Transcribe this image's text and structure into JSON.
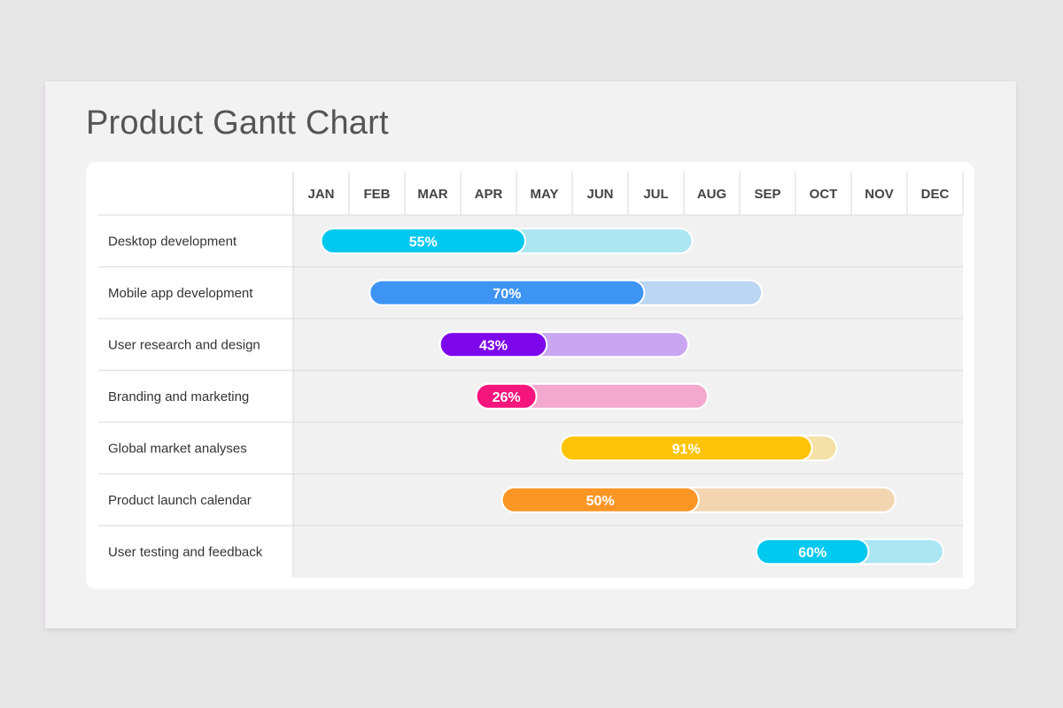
{
  "title": "Product Gantt Chart",
  "chart_data": {
    "type": "gantt",
    "months": [
      "JAN",
      "FEB",
      "MAR",
      "APR",
      "MAY",
      "JUN",
      "JUL",
      "AUG",
      "SEP",
      "OCT",
      "NOV",
      "DEC"
    ],
    "tasks": [
      {
        "name": "Desktop development",
        "start": 0.5,
        "end": 7.15,
        "progress": 55,
        "label": "55%",
        "color": "#00c8ef",
        "light": "#abe6f2"
      },
      {
        "name": "Mobile app development",
        "start": 1.37,
        "end": 8.4,
        "progress": 70,
        "label": "70%",
        "color": "#3e94f3",
        "light": "#bad6f3"
      },
      {
        "name": "User research and design",
        "start": 2.63,
        "end": 7.08,
        "progress": 43,
        "label": "43%",
        "color": "#7d06ea",
        "light": "#c9a6f1"
      },
      {
        "name": "Branding and marketing",
        "start": 3.28,
        "end": 7.43,
        "progress": 26,
        "label": "26%",
        "color": "#f6147d",
        "light": "#f2a9cd"
      },
      {
        "name": "Global market analyses",
        "start": 4.79,
        "end": 9.74,
        "progress": 91,
        "label": "91%",
        "color": "#fdc306",
        "light": "#f4e1a8"
      },
      {
        "name": "Product launch calendar",
        "start": 3.74,
        "end": 10.79,
        "progress": 50,
        "label": "50%",
        "color": "#fb9625",
        "light": "#f3d5b2"
      },
      {
        "name": "User testing and feedback",
        "start": 8.3,
        "end": 11.65,
        "progress": 60,
        "label": "60%",
        "color": "#00c8ef",
        "light": "#abe6f2"
      }
    ]
  }
}
